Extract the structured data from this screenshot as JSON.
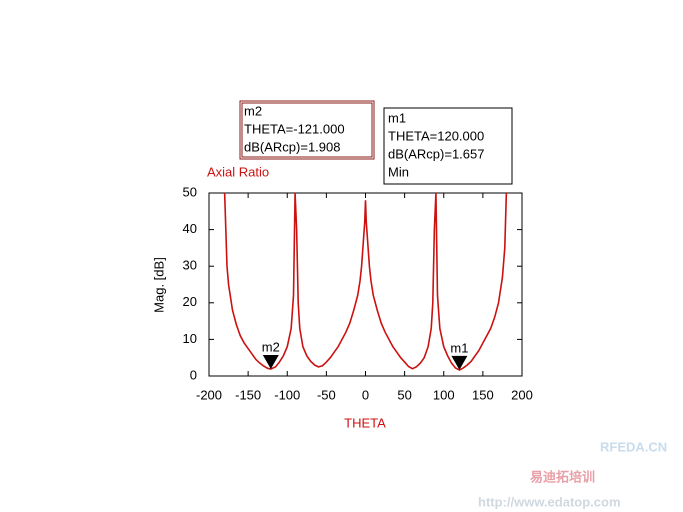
{
  "chart_data": {
    "type": "line",
    "title": "Axial Ratio",
    "x_label": "THETA",
    "y_label": "Mag. [dB]",
    "xlim": [
      -200,
      200
    ],
    "ylim": [
      0,
      50
    ],
    "xticks": [
      -200,
      -150,
      -100,
      -50,
      0,
      50,
      100,
      150,
      200
    ],
    "yticks": [
      0,
      10,
      20,
      30,
      40,
      50
    ],
    "x": [
      -180,
      -177,
      -175,
      -170,
      -165,
      -160,
      -155,
      -150,
      -145,
      -140,
      -135,
      -130,
      -125,
      -121,
      -115,
      -110,
      -105,
      -100,
      -95,
      -92,
      -90,
      -88,
      -86,
      -84,
      -80,
      -75,
      -70,
      -65,
      -60,
      -55,
      -50,
      -45,
      -40,
      -35,
      -30,
      -25,
      -20,
      -15,
      -10,
      -7,
      -5,
      -3,
      -1,
      0,
      1,
      3,
      5,
      7,
      10,
      15,
      20,
      25,
      30,
      35,
      40,
      45,
      50,
      55,
      60,
      65,
      70,
      75,
      80,
      84,
      86,
      88,
      90,
      92,
      95,
      100,
      105,
      110,
      115,
      120,
      125,
      130,
      135,
      140,
      145,
      150,
      155,
      160,
      165,
      170,
      175,
      178,
      180
    ],
    "series": [
      {
        "name": "dB(ARcp)",
        "color": "#cc1111",
        "values": [
          50,
          30,
          25,
          18,
          14,
          11,
          9,
          7.5,
          6,
          4.5,
          3.5,
          2.7,
          2.1,
          1.908,
          2.5,
          3.8,
          5.5,
          8,
          13,
          22,
          50,
          40,
          20,
          13,
          8,
          5.5,
          4,
          3,
          2.5,
          2.8,
          3.8,
          5,
          6.5,
          8,
          10,
          12,
          14.5,
          18,
          22,
          26,
          30,
          36,
          42,
          48,
          42,
          36,
          30,
          26,
          22,
          18,
          14.5,
          12,
          10,
          8,
          6.5,
          5,
          3.8,
          2.6,
          2,
          2.5,
          3.5,
          5,
          8,
          13,
          20,
          40,
          50,
          22,
          13,
          8,
          5.5,
          3.5,
          2.2,
          1.657,
          2.2,
          3,
          4,
          5.5,
          7,
          9,
          11,
          13,
          16,
          20,
          27,
          35,
          50
        ]
      }
    ],
    "markers": [
      {
        "name": "m2",
        "x": -121,
        "y": 1.908,
        "lines": [
          "THETA=-121.000",
          "dB(ARcp)=1.908"
        ]
      },
      {
        "name": "m1",
        "x": 120,
        "y": 1.657,
        "lines": [
          "THETA=120.000",
          "dB(ARcp)=1.657",
          "Min"
        ]
      }
    ],
    "watermark": [
      "RFEDA.CN",
      "易迪拓培训",
      "http://www.edatop.com"
    ]
  }
}
